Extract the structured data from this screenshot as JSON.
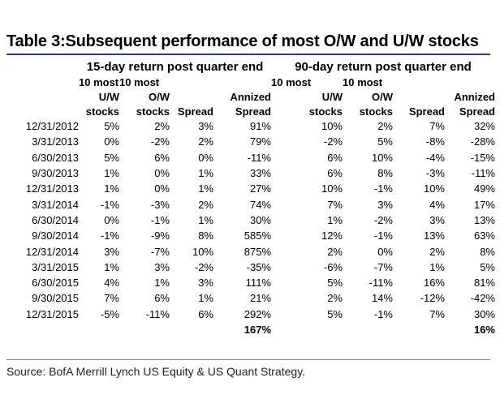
{
  "title": "Table 3:Subsequent performance of most O/W and U/W stocks",
  "source": "Source: BofA Merrill Lynch US Equity & US Quant Strategy.",
  "group_headers": [
    "15-day return post quarter end",
    "90-day return post quarter end"
  ],
  "column_headers": {
    "row1": [
      "",
      "10 most",
      "10 most",
      "",
      "",
      "10 most",
      "10 most",
      "",
      ""
    ],
    "row2": [
      "",
      "U/W",
      "O/W",
      "",
      "Annized",
      "U/W",
      "O/W",
      "",
      "Annized"
    ],
    "row3": [
      "",
      "stocks",
      "stocks",
      "Spread",
      "Spread",
      "stocks",
      "stocks",
      "Spread",
      "Spread"
    ]
  },
  "rows": [
    [
      "12/31/2012",
      "5%",
      "2%",
      "3%",
      "91%",
      "10%",
      "2%",
      "7%",
      "32%"
    ],
    [
      "3/31/2013",
      "0%",
      "-2%",
      "2%",
      "79%",
      "-2%",
      "5%",
      "-8%",
      "-28%"
    ],
    [
      "6/30/2013",
      "5%",
      "6%",
      "0%",
      "-11%",
      "6%",
      "10%",
      "-4%",
      "-15%"
    ],
    [
      "9/30/2013",
      "1%",
      "0%",
      "1%",
      "33%",
      "6%",
      "8%",
      "-3%",
      "-11%"
    ],
    [
      "12/31/2013",
      "1%",
      "0%",
      "1%",
      "27%",
      "10%",
      "-1%",
      "10%",
      "49%"
    ],
    [
      "3/31/2014",
      "-1%",
      "-3%",
      "2%",
      "74%",
      "7%",
      "3%",
      "4%",
      "17%"
    ],
    [
      "6/30/2014",
      "0%",
      "-1%",
      "1%",
      "30%",
      "1%",
      "-2%",
      "3%",
      "13%"
    ],
    [
      "9/30/2014",
      "-1%",
      "-9%",
      "8%",
      "585%",
      "12%",
      "-1%",
      "13%",
      "63%"
    ],
    [
      "12/31/2014",
      "3%",
      "-7%",
      "10%",
      "875%",
      "2%",
      "0%",
      "2%",
      "8%"
    ],
    [
      "3/31/2015",
      "1%",
      "3%",
      "-2%",
      "-35%",
      "-6%",
      "-7%",
      "1%",
      "5%"
    ],
    [
      "6/30/2015",
      "4%",
      "1%",
      "3%",
      "111%",
      "5%",
      "-11%",
      "16%",
      "81%"
    ],
    [
      "9/30/2015",
      "7%",
      "6%",
      "1%",
      "21%",
      "2%",
      "14%",
      "-12%",
      "-42%"
    ],
    [
      "12/31/2015",
      "-5%",
      "-11%",
      "6%",
      "292%",
      "5%",
      "-1%",
      "7%",
      "30%"
    ]
  ],
  "totals": [
    "",
    "",
    "",
    "",
    "167%",
    "",
    "",
    "",
    "16%"
  ],
  "colors": {
    "rule": "#1f3f93"
  }
}
